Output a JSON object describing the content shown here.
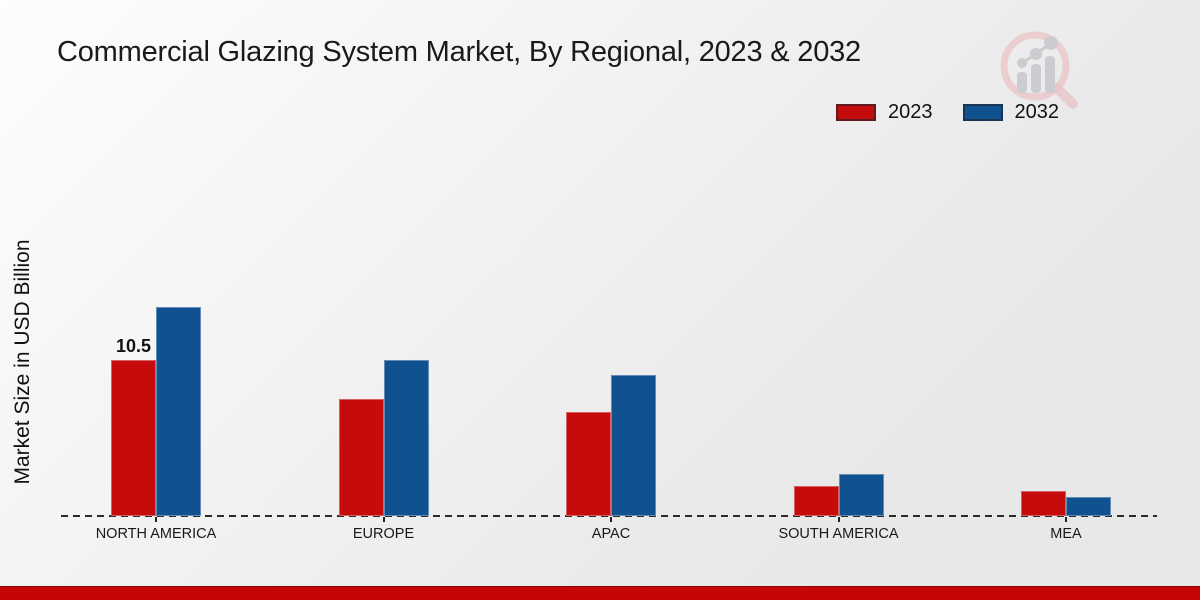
{
  "title": "Commercial Glazing System Market, By Regional, 2023 & 2032",
  "legend": {
    "items": [
      {
        "label": "2023",
        "color": "#c50b0b"
      },
      {
        "label": "2032",
        "color": "#10518f"
      }
    ]
  },
  "chart_data": {
    "type": "bar",
    "categories": [
      "NORTH AMERICA",
      "EUROPE",
      "APAC",
      "SOUTH AMERICA",
      "MEA"
    ],
    "series": [
      {
        "name": "2023",
        "color": "#c50b0b",
        "values": [
          10.5,
          7.9,
          7.0,
          2.0,
          1.7
        ]
      },
      {
        "name": "2032",
        "color": "#10518f",
        "values": [
          14.1,
          10.5,
          9.5,
          2.8,
          1.3
        ]
      }
    ],
    "title": "Commercial Glazing System Market, By Regional, 2023 & 2032",
    "xlabel": "",
    "ylabel": "Market Size in USD Billion",
    "ylim": [
      0,
      16
    ],
    "grid": false,
    "legend_position": "top-right",
    "data_labels": [
      {
        "series": "2023",
        "category": "NORTH AMERICA",
        "text": "10.5"
      }
    ]
  },
  "colors": {
    "accent_bottom_bar": "#c40606",
    "axis": "#2b2b2b",
    "text": "#1a1a1a"
  },
  "icons": {
    "brand_logo": "magnifier-bar-chart-icon"
  }
}
